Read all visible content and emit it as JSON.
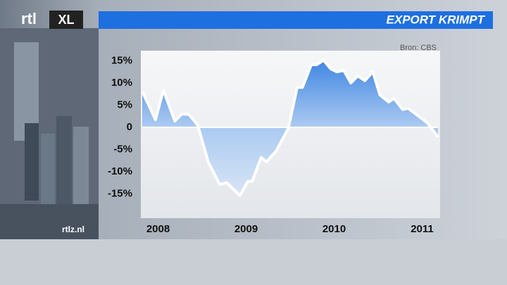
{
  "logo": {
    "left": "rtl",
    "right": "XL"
  },
  "website": "rtlz.nl",
  "chart_data": {
    "type": "line",
    "title": "EXPORT KRIMPT",
    "source": "Bron: CBS",
    "x": [
      2007.82,
      2007.97,
      2008.06,
      2008.19,
      2008.27,
      2008.35,
      2008.45,
      2008.57,
      2008.7,
      2008.78,
      2008.93,
      2009.02,
      2009.07,
      2009.17,
      2009.23,
      2009.34,
      2009.48,
      2009.58,
      2009.64,
      2009.74,
      2009.8,
      2009.88,
      2009.96,
      2010.03,
      2010.11,
      2010.19,
      2010.27,
      2010.35,
      2010.44,
      2010.52,
      2010.62,
      2010.68,
      2010.78,
      2010.84,
      2010.96,
      2011.06,
      2011.18
    ],
    "series": [
      {
        "name": "Export",
        "color": "#ffffff",
        "values": [
          8.1,
          1.7,
          8.4,
          1.4,
          3.0,
          2.9,
          0.5,
          -7.8,
          -12.9,
          -12.5,
          -15.4,
          -12.2,
          -12.2,
          -6.8,
          -7.8,
          -5.4,
          -0.2,
          9.0,
          9.0,
          14.1,
          14.1,
          15.1,
          13.2,
          12.5,
          12.8,
          10.0,
          11.6,
          10.5,
          12.5,
          7.3,
          5.7,
          6.5,
          4.0,
          4.3,
          2.5,
          1.0,
          -2.2
        ]
      }
    ],
    "xlim": [
      2007.82,
      2011.18
    ],
    "xticks": [
      2008,
      2009,
      2010,
      2011
    ],
    "ylim": [
      -20.5,
      17.6
    ],
    "yticks": [
      {
        "value": 15,
        "label": "15%"
      },
      {
        "value": 10,
        "label": "10%"
      },
      {
        "value": 5,
        "label": "5%"
      },
      0,
      {
        "value": -5,
        "label": "-5%"
      },
      {
        "value": -10,
        "label": "-10%"
      },
      {
        "value": -15,
        "label": "-15%"
      }
    ],
    "fill_color": "#2f7be0"
  }
}
